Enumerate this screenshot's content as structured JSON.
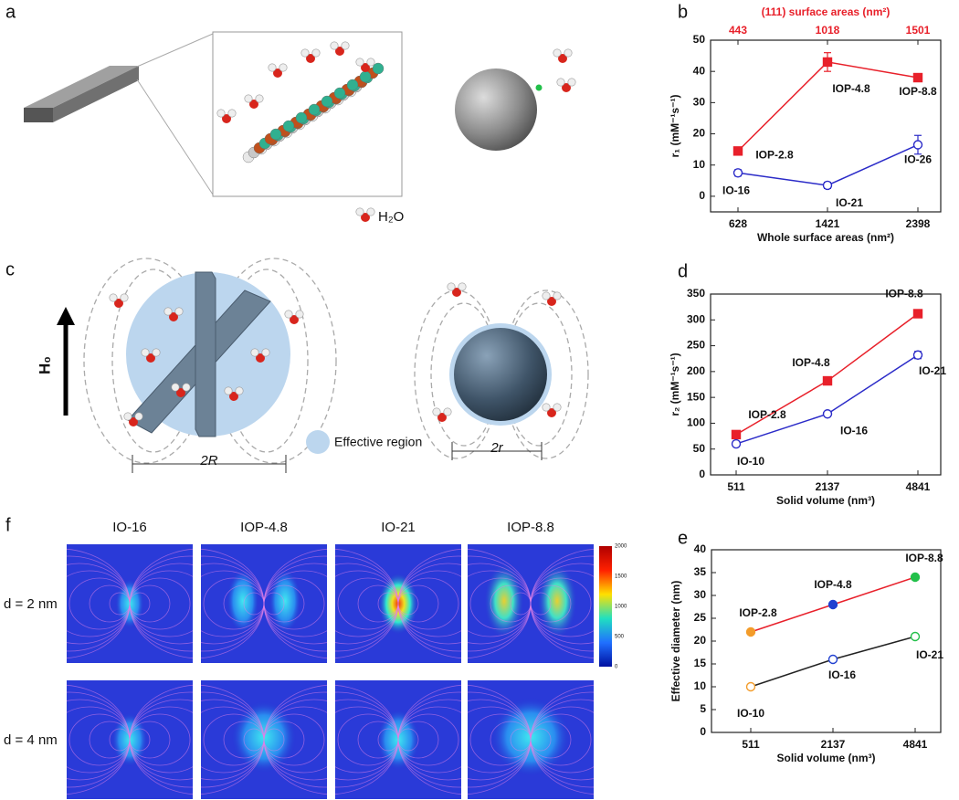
{
  "panel_a": {
    "letter": "a",
    "legend": "H₂O"
  },
  "panel_c": {
    "letter": "c",
    "field_label": "H₀",
    "legend": "Effective region",
    "large_dimension": "2R",
    "small_dimension": "2r"
  },
  "panel_f": {
    "letter": "f",
    "columns": [
      "IO-16",
      "IOP-4.8",
      "IO-21",
      "IOP-8.8"
    ],
    "rows": [
      "d = 2 nm",
      "d = 4 nm"
    ],
    "colorbar_ticks": [
      2000,
      1500,
      1000,
      500,
      0
    ]
  },
  "chart_data": [
    {
      "type": "line",
      "letter": "b",
      "x_label": "Whole surface areas (nm²)",
      "y_label": "r₁ (mM⁻¹s⁻¹)",
      "top_axis_label": "(111) surface areas (nm²)",
      "top_color": "#e8202a",
      "categories": [
        "628",
        "1421",
        "2398"
      ],
      "top_categories": [
        "443",
        "1018",
        "1501"
      ],
      "ylim": [
        -5,
        50
      ],
      "yticks": [
        0,
        10,
        20,
        30,
        40,
        50
      ],
      "series": [
        {
          "color": "#e8202a",
          "marker": "square",
          "filled": true,
          "values": [
            14.5,
            43,
            38
          ],
          "errors": [
            1,
            3,
            1
          ],
          "point_labels": [
            "IOP-2.8",
            "IOP-4.8",
            "IOP-8.8"
          ]
        },
        {
          "color": "#2b2bc8",
          "marker": "circle",
          "filled": false,
          "values": [
            7.5,
            3.5,
            16.5
          ],
          "errors": [
            1,
            1,
            3
          ],
          "point_labels": [
            "IO-16",
            "IO-21",
            "IO-26"
          ]
        }
      ]
    },
    {
      "type": "line",
      "letter": "d",
      "x_label": "Solid volume (nm³)",
      "y_label": "r₂ (mM⁻¹s⁻¹)",
      "categories": [
        "511",
        "2137",
        "4841"
      ],
      "ylim": [
        0,
        350
      ],
      "yticks": [
        0,
        50,
        100,
        150,
        200,
        250,
        300,
        350
      ],
      "series": [
        {
          "color": "#e8202a",
          "marker": "square",
          "filled": true,
          "values": [
            78,
            182,
            312
          ],
          "errors": [
            5,
            6,
            5
          ],
          "point_labels": [
            "IOP-2.8",
            "IOP-4.8",
            "IOP-8.8"
          ]
        },
        {
          "color": "#2b2bc8",
          "marker": "circle",
          "filled": false,
          "values": [
            60,
            118,
            232
          ],
          "errors": [
            5,
            4,
            7
          ],
          "point_labels": [
            "IO-10",
            "IO-16",
            "IO-21"
          ]
        }
      ]
    },
    {
      "type": "line",
      "letter": "e",
      "x_label": "Solid volume (nm³)",
      "y_label": "Effective diameter (nm)",
      "categories": [
        "511",
        "2137",
        "4841"
      ],
      "ylim": [
        0,
        40
      ],
      "yticks": [
        0,
        5,
        10,
        15,
        20,
        25,
        30,
        35,
        40
      ],
      "series": [
        {
          "color": "#e8202a",
          "marker": "circle",
          "filled": true,
          "marker_colors": [
            "#f39c2a",
            "#1f3fd0",
            "#22c04a"
          ],
          "values": [
            22,
            28,
            34
          ],
          "point_labels": [
            "IOP-2.8",
            "IOP-4.8",
            "IOP-8.8"
          ]
        },
        {
          "color": "#222222",
          "marker": "circle",
          "filled": false,
          "marker_colors": [
            "#f39c2a",
            "#1f3fd0",
            "#22c04a"
          ],
          "values": [
            10,
            16,
            21
          ],
          "point_labels": [
            "IO-10",
            "IO-16",
            "IO-21"
          ]
        }
      ]
    }
  ]
}
